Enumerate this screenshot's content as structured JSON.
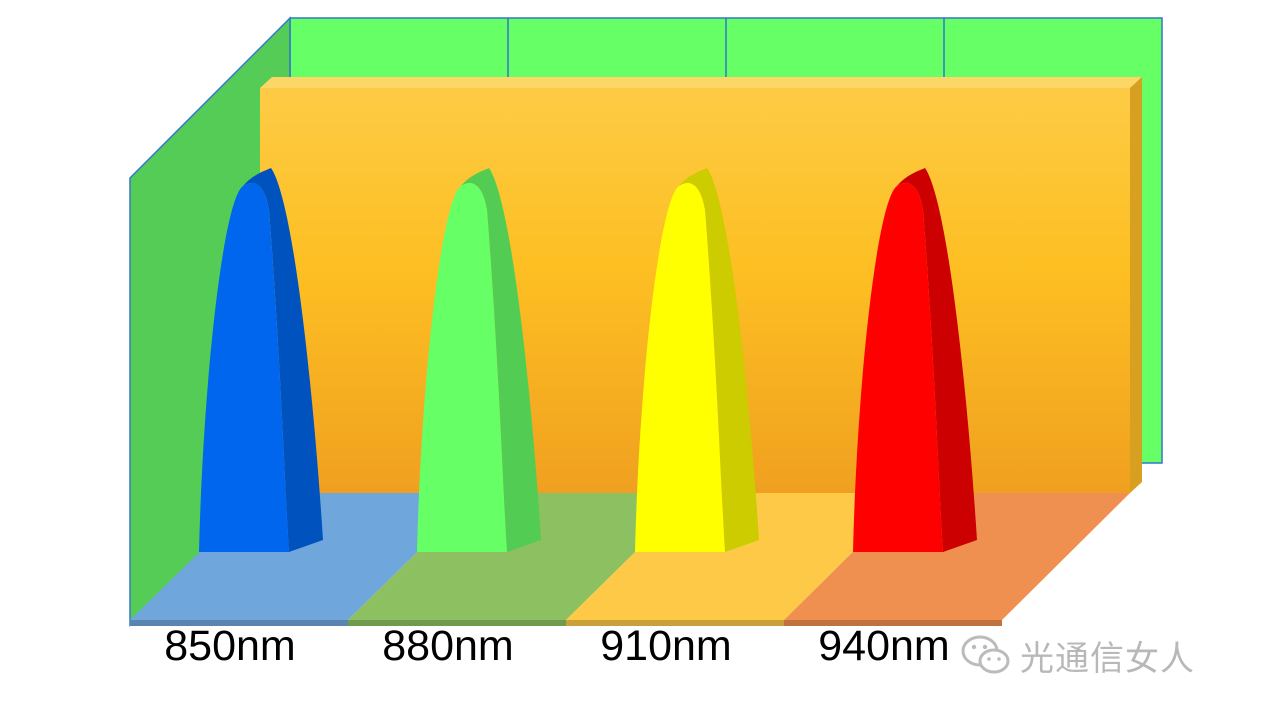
{
  "chart_data": {
    "type": "bar",
    "style": "3d-peaks",
    "categories": [
      "850nm",
      "880nm",
      "910nm",
      "940nm"
    ],
    "series": [
      {
        "values": [
          1,
          1,
          1,
          1
        ]
      }
    ],
    "colors": {
      "peaks": [
        "#0066ee",
        "#66ff66",
        "#ffff00",
        "#ff0000"
      ],
      "floor": [
        "#6fa6dc",
        "#8cc060",
        "#fdc946",
        "#f09050"
      ],
      "back_wall": "#fdbf2d",
      "outer_wall": "#66ff66",
      "side_wall": "#55cc55"
    },
    "title": "",
    "xlabel": "",
    "ylabel": "",
    "grid": false,
    "legend": "none"
  },
  "watermark": {
    "text": "光通信女人"
  }
}
